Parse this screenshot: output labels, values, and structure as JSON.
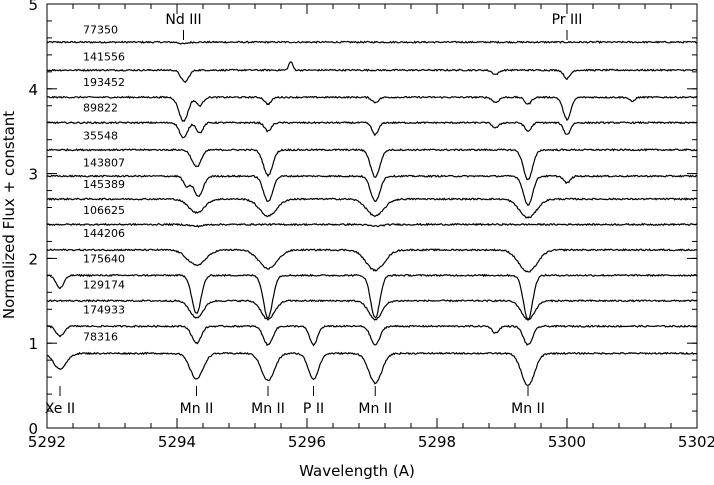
{
  "chart_data": {
    "type": "line",
    "xlabel": "Wavelength (A)",
    "ylabel": "Normalized Flux + constant",
    "xlim": [
      5292,
      5302
    ],
    "ylim": [
      0,
      5
    ],
    "x_ticks": [
      5292,
      5294,
      5296,
      5298,
      5300,
      5302
    ],
    "x_tick_labels": [
      "5292",
      "5294",
      "5296",
      "5298",
      "5300",
      "5302"
    ],
    "y_ticks": [
      0,
      1,
      2,
      3,
      4,
      5
    ],
    "y_tick_labels": [
      "0",
      "1",
      "2",
      "3",
      "4",
      "5"
    ],
    "grid": false,
    "line_ids_top": [
      {
        "label": "Nd III",
        "x": 5294.1
      },
      {
        "label": "Pr III",
        "x": 5300.0
      }
    ],
    "line_ids_bottom": [
      {
        "label": "Xe II",
        "x": 5292.2
      },
      {
        "label": "Mn II",
        "x": 5294.3
      },
      {
        "label": "Mn II",
        "x": 5295.4
      },
      {
        "label": "P II",
        "x": 5296.1
      },
      {
        "label": "Mn II",
        "x": 5297.05
      },
      {
        "label": "Mn II",
        "x": 5299.4
      }
    ],
    "series": [
      {
        "name": "77350",
        "continuum": 4.55,
        "label_y": 4.7,
        "lines": [
          {
            "x": 5294.1,
            "depth": 0.02,
            "width": 0.06
          }
        ]
      },
      {
        "name": "141556",
        "continuum": 4.22,
        "label_y": 4.38,
        "lines": [
          {
            "x": 5294.12,
            "depth": 0.14,
            "width": 0.06
          },
          {
            "x": 5298.9,
            "depth": 0.05,
            "width": 0.05
          },
          {
            "x": 5300.0,
            "depth": 0.1,
            "width": 0.05
          },
          {
            "x": 5295.75,
            "depth": -0.1,
            "width": 0.03
          }
        ]
      },
      {
        "name": "193452",
        "continuum": 3.9,
        "label_y": 4.08,
        "lines": [
          {
            "x": 5294.1,
            "depth": 0.28,
            "width": 0.07
          },
          {
            "x": 5294.35,
            "depth": 0.1,
            "width": 0.05
          },
          {
            "x": 5295.4,
            "depth": 0.08,
            "width": 0.05
          },
          {
            "x": 5297.05,
            "depth": 0.06,
            "width": 0.05
          },
          {
            "x": 5298.9,
            "depth": 0.06,
            "width": 0.05
          },
          {
            "x": 5299.4,
            "depth": 0.08,
            "width": 0.05
          },
          {
            "x": 5300.0,
            "depth": 0.26,
            "width": 0.06
          },
          {
            "x": 5301.0,
            "depth": 0.05,
            "width": 0.04
          }
        ]
      },
      {
        "name": "89822",
        "continuum": 3.6,
        "label_y": 3.78,
        "lines": [
          {
            "x": 5294.1,
            "depth": 0.18,
            "width": 0.06
          },
          {
            "x": 5294.35,
            "depth": 0.12,
            "width": 0.05
          },
          {
            "x": 5295.4,
            "depth": 0.1,
            "width": 0.05
          },
          {
            "x": 5297.05,
            "depth": 0.14,
            "width": 0.05
          },
          {
            "x": 5298.9,
            "depth": 0.06,
            "width": 0.05
          },
          {
            "x": 5299.4,
            "depth": 0.1,
            "width": 0.05
          },
          {
            "x": 5300.0,
            "depth": 0.14,
            "width": 0.05
          }
        ]
      },
      {
        "name": "35548",
        "continuum": 3.28,
        "label_y": 3.45,
        "lines": [
          {
            "x": 5294.3,
            "depth": 0.2,
            "width": 0.07
          },
          {
            "x": 5295.4,
            "depth": 0.3,
            "width": 0.07
          },
          {
            "x": 5297.05,
            "depth": 0.32,
            "width": 0.07
          },
          {
            "x": 5299.4,
            "depth": 0.35,
            "width": 0.07
          }
        ]
      },
      {
        "name": "143807",
        "continuum": 2.97,
        "label_y": 3.13,
        "lines": [
          {
            "x": 5294.15,
            "depth": 0.12,
            "width": 0.05
          },
          {
            "x": 5294.33,
            "depth": 0.24,
            "width": 0.07
          },
          {
            "x": 5295.4,
            "depth": 0.3,
            "width": 0.07
          },
          {
            "x": 5297.05,
            "depth": 0.3,
            "width": 0.07
          },
          {
            "x": 5299.4,
            "depth": 0.34,
            "width": 0.07
          },
          {
            "x": 5300.0,
            "depth": 0.08,
            "width": 0.05
          }
        ]
      },
      {
        "name": "145389",
        "continuum": 2.7,
        "label_y": 2.88,
        "lines": [
          {
            "x": 5294.3,
            "depth": 0.16,
            "width": 0.12
          },
          {
            "x": 5295.4,
            "depth": 0.2,
            "width": 0.13
          },
          {
            "x": 5297.05,
            "depth": 0.2,
            "width": 0.13
          },
          {
            "x": 5299.4,
            "depth": 0.22,
            "width": 0.13
          }
        ]
      },
      {
        "name": "106625",
        "continuum": 2.4,
        "label_y": 2.57,
        "lines": [
          {
            "x": 5294.3,
            "depth": 0.02,
            "width": 0.1
          },
          {
            "x": 5297.05,
            "depth": 0.02,
            "width": 0.1
          }
        ]
      },
      {
        "name": "144206",
        "continuum": 2.1,
        "label_y": 2.3,
        "lines": [
          {
            "x": 5294.3,
            "depth": 0.18,
            "width": 0.14
          },
          {
            "x": 5295.4,
            "depth": 0.22,
            "width": 0.14
          },
          {
            "x": 5297.05,
            "depth": 0.24,
            "width": 0.14
          },
          {
            "x": 5299.4,
            "depth": 0.26,
            "width": 0.14
          }
        ]
      },
      {
        "name": "175640",
        "continuum": 1.8,
        "label_y": 2.0,
        "lines": [
          {
            "x": 5292.2,
            "depth": 0.15,
            "width": 0.06
          },
          {
            "x": 5294.3,
            "depth": 0.45,
            "width": 0.07
          },
          {
            "x": 5295.4,
            "depth": 0.5,
            "width": 0.07
          },
          {
            "x": 5297.05,
            "depth": 0.5,
            "width": 0.07
          },
          {
            "x": 5299.4,
            "depth": 0.52,
            "width": 0.07
          }
        ]
      },
      {
        "name": "129174",
        "continuum": 1.5,
        "label_y": 1.69,
        "lines": [
          {
            "x": 5294.3,
            "depth": 0.2,
            "width": 0.1
          },
          {
            "x": 5295.4,
            "depth": 0.22,
            "width": 0.1
          },
          {
            "x": 5297.05,
            "depth": 0.22,
            "width": 0.1
          },
          {
            "x": 5299.4,
            "depth": 0.22,
            "width": 0.1
          }
        ]
      },
      {
        "name": "174933",
        "continuum": 1.2,
        "label_y": 1.4,
        "lines": [
          {
            "x": 5292.2,
            "depth": 0.12,
            "width": 0.06
          },
          {
            "x": 5294.3,
            "depth": 0.2,
            "width": 0.07
          },
          {
            "x": 5295.4,
            "depth": 0.22,
            "width": 0.07
          },
          {
            "x": 5296.1,
            "depth": 0.22,
            "width": 0.06
          },
          {
            "x": 5297.05,
            "depth": 0.22,
            "width": 0.07
          },
          {
            "x": 5298.9,
            "depth": 0.08,
            "width": 0.05
          },
          {
            "x": 5299.4,
            "depth": 0.22,
            "width": 0.07
          }
        ]
      },
      {
        "name": "78316",
        "continuum": 0.88,
        "label_y": 1.08,
        "lines": [
          {
            "x": 5292.2,
            "depth": 0.18,
            "width": 0.1
          },
          {
            "x": 5294.3,
            "depth": 0.3,
            "width": 0.1
          },
          {
            "x": 5295.4,
            "depth": 0.32,
            "width": 0.1
          },
          {
            "x": 5296.1,
            "depth": 0.3,
            "width": 0.08
          },
          {
            "x": 5297.05,
            "depth": 0.35,
            "width": 0.1
          },
          {
            "x": 5299.4,
            "depth": 0.38,
            "width": 0.1
          }
        ]
      }
    ]
  }
}
